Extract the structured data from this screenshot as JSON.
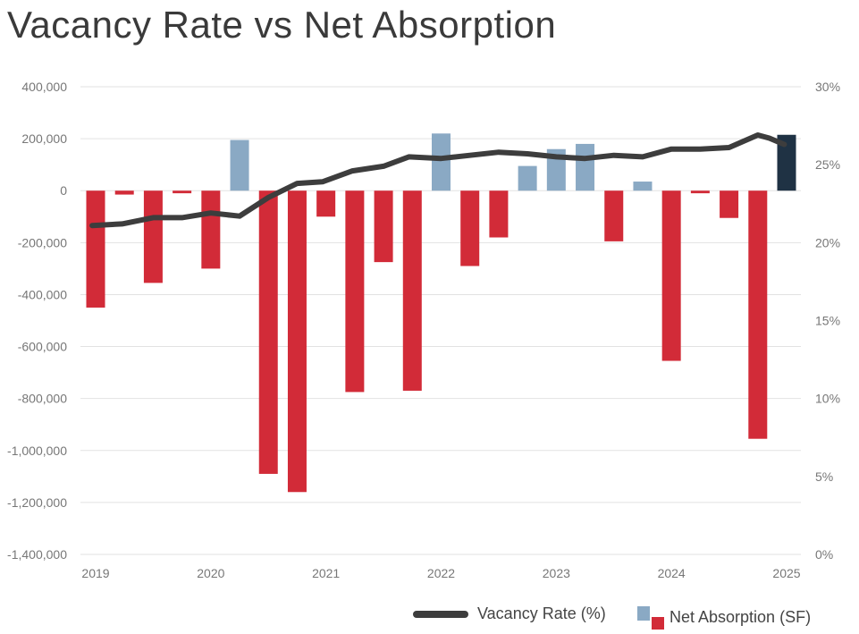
{
  "title": "Vacancy Rate vs Net Absorption",
  "colors": {
    "negative": "#d22b38",
    "positive": "#8aa9c4",
    "latest": "#1f3244",
    "line": "#3d3d3d",
    "grid": "#e2e2e2"
  },
  "legend": {
    "line_label": "Vacancy Rate (%)",
    "bar_label": "Net Absorption (SF)"
  },
  "chart_data": {
    "type": "bar",
    "left_axis": {
      "min": -1400000,
      "max": 400000,
      "ticks": [
        400000,
        200000,
        0,
        -200000,
        -400000,
        -600000,
        -800000,
        -1000000,
        -1200000,
        -1400000
      ],
      "tick_labels": [
        "400,000",
        "200,000",
        "0",
        "-200,000",
        "-400,000",
        "-600,000",
        "-800,000",
        "-1,000,000",
        "-1,200,000",
        "-1,400,000"
      ]
    },
    "right_axis": {
      "min": 0,
      "max": 30,
      "ticks": [
        30,
        25,
        20,
        15,
        10,
        5,
        0
      ],
      "tick_labels": [
        "30%",
        "25%",
        "20%",
        "15%",
        "10%",
        "5%",
        "0%"
      ]
    },
    "x_axis": {
      "min": 2019,
      "max": 2025,
      "ticks": [
        2019,
        2020,
        2021,
        2022,
        2023,
        2024,
        2025
      ],
      "tick_labels": [
        "2019",
        "2020",
        "2021",
        "2022",
        "2023",
        "2024",
        "2025"
      ]
    },
    "grid": true,
    "series": [
      {
        "name": "Net Absorption (SF)",
        "type": "bar",
        "axis": "left",
        "x": [
          2019.0,
          2019.25,
          2019.5,
          2019.75,
          2020.0,
          2020.25,
          2020.5,
          2020.75,
          2021.0,
          2021.25,
          2021.5,
          2021.75,
          2022.0,
          2022.25,
          2022.5,
          2022.75,
          2023.0,
          2023.25,
          2023.5,
          2023.75,
          2024.0,
          2024.25,
          2024.5,
          2024.75,
          2025.0
        ],
        "values": [
          -450000,
          -15000,
          -355000,
          -10000,
          -300000,
          195000,
          -1090000,
          -1160000,
          -100000,
          -775000,
          -275000,
          -770000,
          220000,
          -290000,
          -180000,
          95000,
          160000,
          180000,
          -195000,
          35000,
          -655000,
          -10000,
          -105000,
          -955000,
          215000
        ]
      },
      {
        "name": "Vacancy Rate (%)",
        "type": "line",
        "axis": "right",
        "x": [
          2018.97,
          2019.23,
          2019.5,
          2019.75,
          2020.0,
          2020.25,
          2020.5,
          2020.75,
          2020.97,
          2021.23,
          2021.5,
          2021.72,
          2022.0,
          2022.25,
          2022.5,
          2022.75,
          2023.0,
          2023.25,
          2023.5,
          2023.75,
          2024.0,
          2024.25,
          2024.5,
          2024.75,
          2024.85,
          2024.98
        ],
        "values": [
          21.1,
          21.2,
          21.6,
          21.6,
          21.9,
          21.7,
          22.9,
          23.8,
          23.9,
          24.6,
          24.9,
          25.5,
          25.4,
          25.6,
          25.8,
          25.7,
          25.5,
          25.4,
          25.6,
          25.5,
          26.0,
          26.0,
          26.1,
          26.9,
          26.7,
          26.3
        ]
      }
    ],
    "latest_highlight_index": 24
  }
}
